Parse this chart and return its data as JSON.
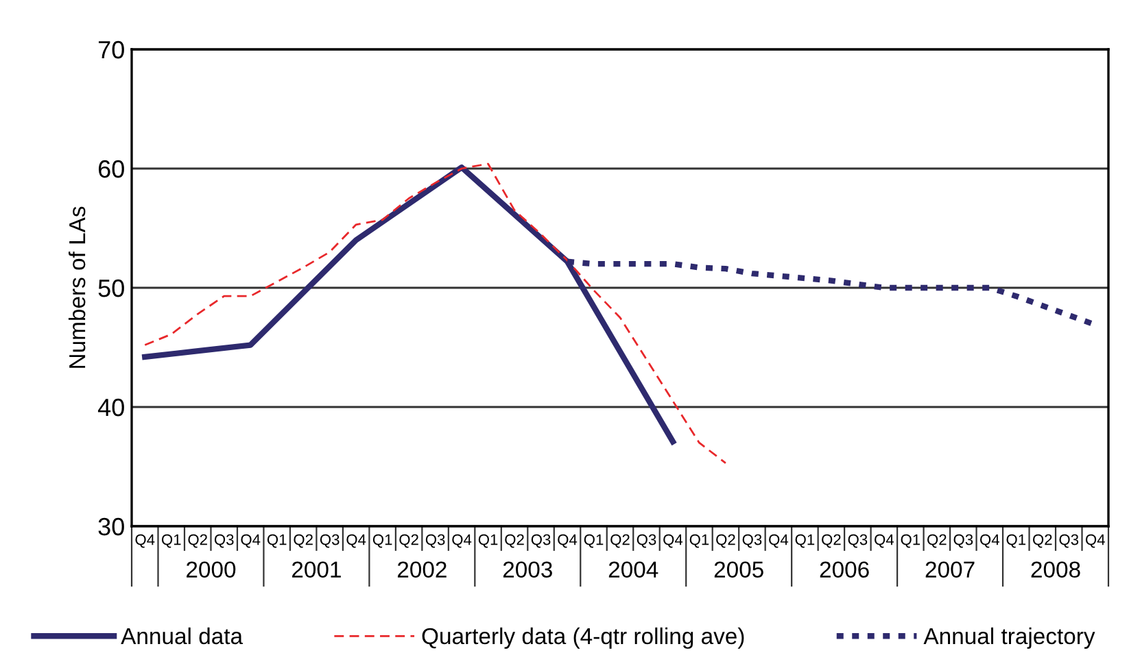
{
  "chart_data": {
    "type": "line",
    "ylabel": "Numbers of LAs",
    "categories": [
      "Q4",
      "Q1",
      "Q2",
      "Q3",
      "Q4",
      "Q1",
      "Q2",
      "Q3",
      "Q4",
      "Q1",
      "Q2",
      "Q3",
      "Q4",
      "Q1",
      "Q2",
      "Q3",
      "Q4",
      "Q1",
      "Q2",
      "Q3",
      "Q4",
      "Q1",
      "Q2",
      "Q3",
      "Q4",
      "Q1",
      "Q2",
      "Q3",
      "Q4",
      "Q1",
      "Q2",
      "Q3",
      "Q4",
      "Q1",
      "Q2",
      "Q3",
      "Q4"
    ],
    "annotations": [
      "2000",
      "2001",
      "2002",
      "2003",
      "2004",
      "2005",
      "2006",
      "2007",
      "2008"
    ],
    "series": [
      {
        "name": "Annual data",
        "color": "#2e2a6e",
        "line_style": "solid",
        "values": [
          44.2,
          null,
          null,
          null,
          45.2,
          null,
          null,
          null,
          54.0,
          null,
          null,
          null,
          60.1,
          null,
          null,
          null,
          52.2,
          null,
          null,
          null,
          37.1,
          null,
          null,
          null,
          null,
          null,
          null,
          null,
          null,
          null,
          null,
          null,
          null,
          null,
          null,
          null,
          null
        ]
      },
      {
        "name": "Quarterly data (4-qtr rolling ave)",
        "color": "#e8282b",
        "line_style": "dashed",
        "values": [
          45.2,
          46.1,
          47.8,
          49.3,
          49.3,
          50.5,
          51.7,
          53.0,
          55.3,
          55.7,
          57.5,
          58.8,
          60.0,
          60.4,
          56.5,
          54.5,
          52.3,
          49.8,
          47.5,
          44.0,
          40.5,
          37.0,
          35.3,
          null,
          null,
          null,
          null,
          null,
          null,
          null,
          null,
          null,
          null,
          null,
          null,
          null,
          null
        ]
      },
      {
        "name": "Annual trajectory",
        "color": "#2e2a6e",
        "line_style": "dotted",
        "values": [
          null,
          null,
          null,
          null,
          null,
          null,
          null,
          null,
          null,
          null,
          null,
          null,
          null,
          null,
          null,
          null,
          52.2,
          52.0,
          52.0,
          52.0,
          52.0,
          51.7,
          51.6,
          51.2,
          51.0,
          50.8,
          50.6,
          50.3,
          50.0,
          50.0,
          50.0,
          50.0,
          50.0,
          49.3,
          48.5,
          47.7,
          46.9
        ]
      }
    ],
    "ylim": [
      30,
      70
    ],
    "yticks": [
      30,
      40,
      50,
      60,
      70
    ],
    "grid": "y",
    "legend": "bottom",
    "marker": "none"
  }
}
